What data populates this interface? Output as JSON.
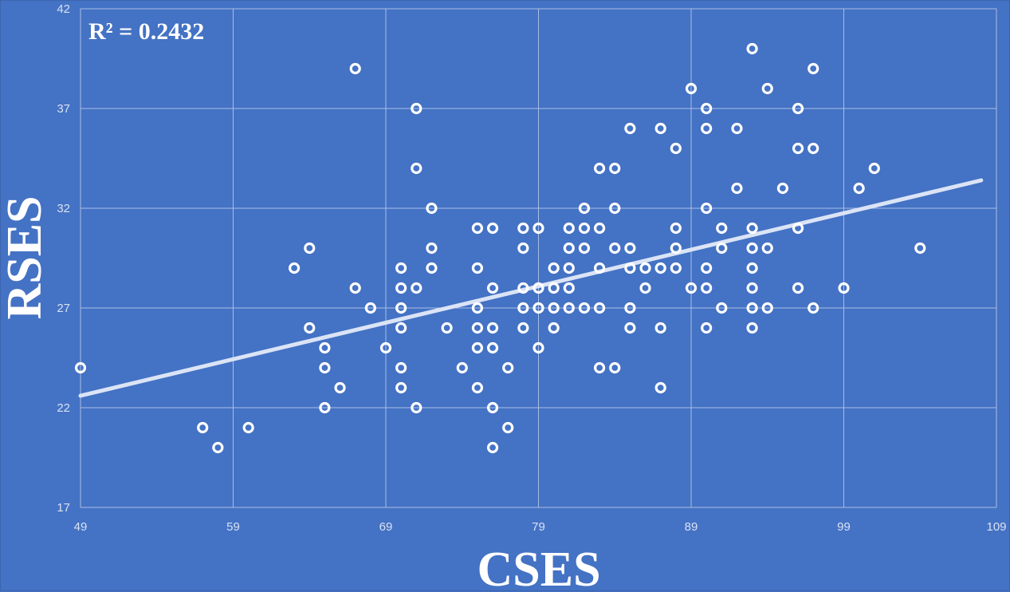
{
  "chart_data": {
    "type": "scatter",
    "title": "",
    "xlabel": "CSES",
    "ylabel": "RSES",
    "annotation": "R² = 0.2432",
    "xlim": [
      49,
      109
    ],
    "ylim": [
      17,
      42
    ],
    "x_ticks": [
      "49",
      "59",
      "69",
      "79",
      "89",
      "99",
      "109"
    ],
    "y_ticks": [
      "17",
      "22",
      "27",
      "32",
      "37",
      "42"
    ],
    "grid": true,
    "legend": "none",
    "colors": {
      "background": "#4472c4",
      "points": "#ffffff",
      "trendline": "#dbe4f6",
      "grid": "#a9bfe6"
    },
    "trendline": {
      "type": "linear",
      "x": [
        49,
        108
      ],
      "y": [
        22.6,
        33.4
      ]
    },
    "points": [
      {
        "x": 49,
        "y": 24
      },
      {
        "x": 57,
        "y": 21
      },
      {
        "x": 58,
        "y": 20
      },
      {
        "x": 60,
        "y": 21
      },
      {
        "x": 63,
        "y": 29
      },
      {
        "x": 64,
        "y": 30
      },
      {
        "x": 64,
        "y": 26
      },
      {
        "x": 65,
        "y": 25
      },
      {
        "x": 65,
        "y": 24
      },
      {
        "x": 65,
        "y": 22
      },
      {
        "x": 66,
        "y": 23
      },
      {
        "x": 67,
        "y": 39
      },
      {
        "x": 67,
        "y": 28
      },
      {
        "x": 68,
        "y": 27
      },
      {
        "x": 69,
        "y": 25
      },
      {
        "x": 70,
        "y": 29
      },
      {
        "x": 70,
        "y": 28
      },
      {
        "x": 70,
        "y": 27
      },
      {
        "x": 70,
        "y": 26
      },
      {
        "x": 70,
        "y": 24
      },
      {
        "x": 70,
        "y": 23
      },
      {
        "x": 71,
        "y": 37
      },
      {
        "x": 71,
        "y": 34
      },
      {
        "x": 71,
        "y": 28
      },
      {
        "x": 71,
        "y": 22
      },
      {
        "x": 72,
        "y": 32
      },
      {
        "x": 72,
        "y": 30
      },
      {
        "x": 72,
        "y": 29
      },
      {
        "x": 73,
        "y": 26
      },
      {
        "x": 74,
        "y": 24
      },
      {
        "x": 75,
        "y": 31
      },
      {
        "x": 75,
        "y": 29
      },
      {
        "x": 75,
        "y": 27
      },
      {
        "x": 75,
        "y": 26
      },
      {
        "x": 75,
        "y": 25
      },
      {
        "x": 75,
        "y": 23
      },
      {
        "x": 76,
        "y": 31
      },
      {
        "x": 76,
        "y": 28
      },
      {
        "x": 76,
        "y": 26
      },
      {
        "x": 76,
        "y": 25
      },
      {
        "x": 76,
        "y": 22
      },
      {
        "x": 76,
        "y": 20
      },
      {
        "x": 77,
        "y": 24
      },
      {
        "x": 77,
        "y": 21
      },
      {
        "x": 78,
        "y": 31
      },
      {
        "x": 78,
        "y": 30
      },
      {
        "x": 78,
        "y": 28
      },
      {
        "x": 78,
        "y": 27
      },
      {
        "x": 78,
        "y": 26
      },
      {
        "x": 79,
        "y": 31
      },
      {
        "x": 79,
        "y": 28
      },
      {
        "x": 79,
        "y": 27
      },
      {
        "x": 79,
        "y": 25
      },
      {
        "x": 80,
        "y": 29
      },
      {
        "x": 80,
        "y": 28
      },
      {
        "x": 80,
        "y": 27
      },
      {
        "x": 80,
        "y": 26
      },
      {
        "x": 81,
        "y": 31
      },
      {
        "x": 81,
        "y": 30
      },
      {
        "x": 81,
        "y": 29
      },
      {
        "x": 81,
        "y": 28
      },
      {
        "x": 81,
        "y": 27
      },
      {
        "x": 82,
        "y": 32
      },
      {
        "x": 82,
        "y": 31
      },
      {
        "x": 82,
        "y": 30
      },
      {
        "x": 82,
        "y": 27
      },
      {
        "x": 83,
        "y": 34
      },
      {
        "x": 83,
        "y": 31
      },
      {
        "x": 83,
        "y": 29
      },
      {
        "x": 83,
        "y": 27
      },
      {
        "x": 83,
        "y": 24
      },
      {
        "x": 84,
        "y": 34
      },
      {
        "x": 84,
        "y": 32
      },
      {
        "x": 84,
        "y": 30
      },
      {
        "x": 84,
        "y": 24
      },
      {
        "x": 85,
        "y": 36
      },
      {
        "x": 85,
        "y": 30
      },
      {
        "x": 85,
        "y": 29
      },
      {
        "x": 85,
        "y": 27
      },
      {
        "x": 85,
        "y": 26
      },
      {
        "x": 86,
        "y": 29
      },
      {
        "x": 86,
        "y": 28
      },
      {
        "x": 87,
        "y": 36
      },
      {
        "x": 87,
        "y": 29
      },
      {
        "x": 87,
        "y": 26
      },
      {
        "x": 87,
        "y": 23
      },
      {
        "x": 88,
        "y": 35
      },
      {
        "x": 88,
        "y": 31
      },
      {
        "x": 88,
        "y": 30
      },
      {
        "x": 88,
        "y": 29
      },
      {
        "x": 89,
        "y": 38
      },
      {
        "x": 89,
        "y": 28
      },
      {
        "x": 90,
        "y": 37
      },
      {
        "x": 90,
        "y": 36
      },
      {
        "x": 90,
        "y": 32
      },
      {
        "x": 90,
        "y": 29
      },
      {
        "x": 90,
        "y": 28
      },
      {
        "x": 90,
        "y": 26
      },
      {
        "x": 91,
        "y": 31
      },
      {
        "x": 91,
        "y": 30
      },
      {
        "x": 91,
        "y": 27
      },
      {
        "x": 92,
        "y": 36
      },
      {
        "x": 92,
        "y": 33
      },
      {
        "x": 93,
        "y": 40
      },
      {
        "x": 93,
        "y": 31
      },
      {
        "x": 93,
        "y": 30
      },
      {
        "x": 93,
        "y": 29
      },
      {
        "x": 93,
        "y": 28
      },
      {
        "x": 93,
        "y": 27
      },
      {
        "x": 93,
        "y": 26
      },
      {
        "x": 94,
        "y": 38
      },
      {
        "x": 94,
        "y": 30
      },
      {
        "x": 94,
        "y": 27
      },
      {
        "x": 95,
        "y": 33
      },
      {
        "x": 96,
        "y": 37
      },
      {
        "x": 96,
        "y": 35
      },
      {
        "x": 96,
        "y": 31
      },
      {
        "x": 96,
        "y": 28
      },
      {
        "x": 97,
        "y": 39
      },
      {
        "x": 97,
        "y": 35
      },
      {
        "x": 97,
        "y": 27
      },
      {
        "x": 99,
        "y": 28
      },
      {
        "x": 100,
        "y": 33
      },
      {
        "x": 101,
        "y": 34
      },
      {
        "x": 104,
        "y": 30
      }
    ]
  }
}
